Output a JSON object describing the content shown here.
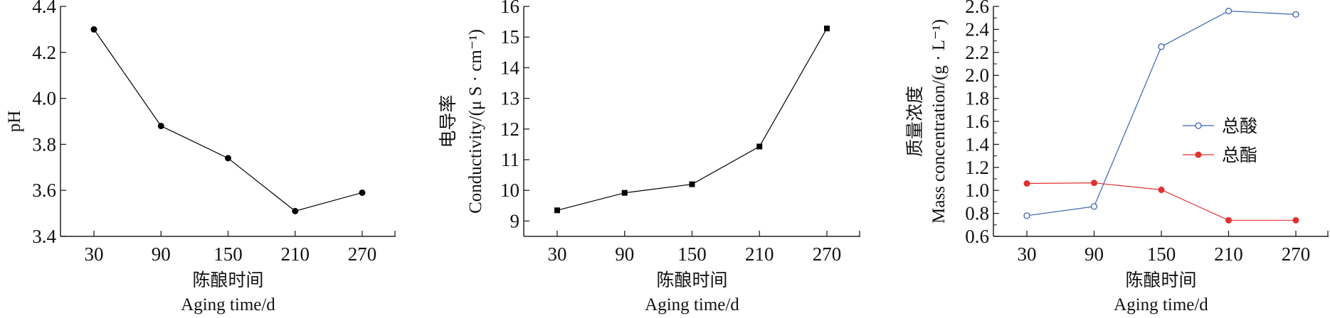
{
  "chart_data": [
    {
      "type": "line",
      "title": "",
      "xlabel_cn": "陈酿时间",
      "xlabel": "Aging time/d",
      "ylabel": "pH",
      "ylabel_cn": "",
      "categories": [
        "30",
        "90",
        "150",
        "210",
        "270"
      ],
      "x": [
        30,
        90,
        150,
        210,
        270
      ],
      "series": [
        {
          "name": "pH",
          "values": [
            4.3,
            3.88,
            3.74,
            3.51,
            3.59
          ],
          "color": "#000000",
          "marker": "circle-filled"
        }
      ],
      "ylim": [
        3.4,
        4.4
      ],
      "yticks": [
        "3.4",
        "3.6",
        "3.8",
        "4.0",
        "4.2",
        "4.4"
      ],
      "grid": false
    },
    {
      "type": "line",
      "title": "",
      "xlabel_cn": "陈酿时间",
      "xlabel": "Aging time/d",
      "ylabel_cn": "电导率",
      "ylabel": "Conductivity/(μ S · cm⁻¹)",
      "categories": [
        "30",
        "90",
        "150",
        "210",
        "270"
      ],
      "x": [
        30,
        90,
        150,
        210,
        270
      ],
      "series": [
        {
          "name": "Conductivity",
          "values": [
            9.35,
            9.92,
            10.2,
            11.43,
            15.28
          ],
          "color": "#000000",
          "marker": "square-filled"
        }
      ],
      "ylim": [
        8.5,
        16
      ],
      "yticks": [
        "9",
        "10",
        "11",
        "12",
        "13",
        "14",
        "15",
        "16"
      ],
      "grid": false
    },
    {
      "type": "line",
      "title": "",
      "xlabel_cn": "陈酿时间",
      "xlabel": "Aging time/d",
      "ylabel_cn": "质量浓度",
      "ylabel": "Mass concentration/(g · L⁻¹)",
      "categories": [
        "30",
        "90",
        "150",
        "210",
        "270"
      ],
      "x": [
        30,
        90,
        150,
        210,
        270
      ],
      "series": [
        {
          "name": "总酸",
          "values": [
            0.78,
            0.86,
            2.25,
            2.56,
            2.53
          ],
          "color": "#3a64b0",
          "marker": "circle-open"
        },
        {
          "name": "总酯",
          "values": [
            1.06,
            1.065,
            1.005,
            0.74,
            0.74
          ],
          "color": "#e03030",
          "marker": "circle-filled"
        }
      ],
      "ylim": [
        0.6,
        2.6
      ],
      "yticks": [
        "0.6",
        "0.8",
        "1.0",
        "1.2",
        "1.4",
        "1.6",
        "1.8",
        "2.0",
        "2.2",
        "2.4",
        "2.6"
      ],
      "legend": "center-right",
      "grid": false
    }
  ]
}
